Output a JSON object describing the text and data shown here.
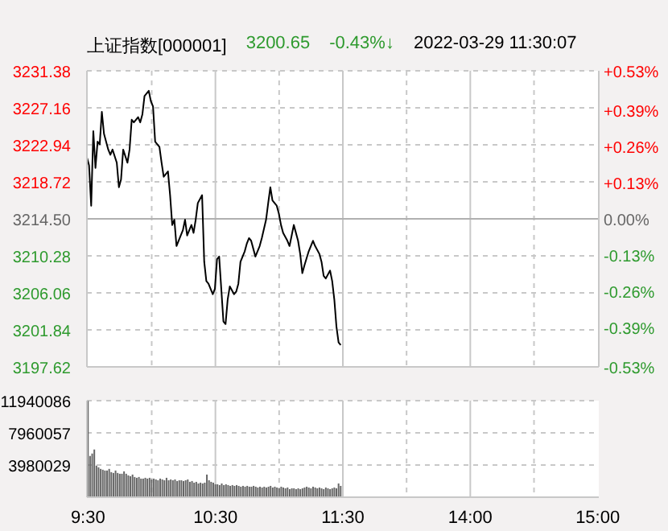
{
  "chart_data": [
    {
      "type": "line",
      "title": "上证指数[000001]",
      "annotations": [
        "3200.65",
        "-0.43%↓",
        "2022-03-29 11:30:07"
      ],
      "categories": [
        null,
        null,
        null,
        null,
        null,
        null,
        null,
        null,
        null,
        null,
        null,
        null,
        null,
        null,
        null,
        null,
        null,
        null,
        null,
        null,
        null,
        null,
        null,
        null,
        null,
        null,
        null,
        null,
        null,
        null,
        null,
        null,
        null,
        null,
        null,
        null,
        null,
        null,
        null,
        null,
        null,
        null,
        null,
        null,
        null,
        null,
        null,
        null,
        null,
        null,
        null,
        null,
        null,
        null,
        null,
        null,
        null,
        null,
        null,
        null,
        null,
        null,
        null,
        null,
        null,
        null,
        null,
        null,
        null,
        null,
        null,
        null,
        null,
        null,
        null,
        null,
        null,
        null,
        null,
        null,
        null,
        null,
        null,
        null,
        null,
        null,
        null,
        null,
        null,
        null,
        null,
        null,
        null,
        null,
        null,
        null,
        null,
        null,
        null,
        null,
        null,
        null,
        null,
        null,
        null,
        null,
        null,
        null,
        null,
        null,
        null,
        null,
        null,
        null,
        null,
        null,
        null,
        null,
        null,
        null,
        null,
        null,
        null,
        null,
        null,
        null,
        null,
        null,
        null,
        null,
        null,
        null,
        null,
        null,
        null,
        null,
        null,
        null,
        null,
        null,
        null,
        null,
        null,
        null,
        null,
        null,
        null,
        null,
        null,
        null,
        null,
        null,
        null,
        null,
        null,
        null,
        null,
        null,
        null,
        null,
        null,
        null,
        null,
        null,
        null,
        null,
        null,
        null,
        null,
        null,
        null,
        null,
        null,
        null,
        null,
        null,
        null,
        null,
        null,
        null,
        null,
        null,
        null,
        null,
        null,
        null,
        null,
        null,
        null,
        null,
        null,
        null,
        null,
        null,
        null,
        null,
        null,
        null,
        null,
        null,
        null,
        null,
        null,
        null,
        null,
        null,
        null,
        null,
        null,
        null,
        null,
        null,
        null,
        null,
        null,
        null,
        null,
        null,
        null,
        null,
        null,
        null,
        null,
        null,
        null,
        null,
        null,
        null,
        null,
        null,
        null,
        null,
        null,
        null,
        null,
        null,
        null,
        null,
        null,
        null,
        null
      ],
      "series": [
        {
          "color": "#000000",
          "values": [
            3221.5,
            3220.6,
            3216.0,
            3224.5,
            3220.3,
            3223.3,
            3223.0,
            3226.7,
            3224.2,
            null,
            3222.4,
            3221.8,
            3222.4,
            null,
            3220.9,
            3218.1,
            3219.0,
            3222.4,
            null,
            3220.9,
            3222.4,
            3225.8,
            3225.5,
            null,
            3226.1,
            3225.5,
            3226.4,
            3228.5,
            null,
            3229.1,
            3227.9,
            3227.3,
            3223.3,
            null,
            3222.7,
            3220.9,
            3219.3,
            3219.6,
            3219.9,
            3217.2,
            3213.8,
            3214.4,
            3211.4,
            null,
            3212.6,
            3213.2,
            3214.4,
            3212.6,
            null,
            3213.8,
            3212.9,
            3214.4,
            3216.3,
            null,
            3217.2,
            3209.6,
            3207.4,
            3207.1,
            null,
            3205.9,
            3206.5,
            3209.9,
            3210.2,
            null,
            3202.8,
            3202.5,
            3205.3,
            3206.8,
            null,
            3205.9,
            3206.2,
            3207.1,
            3209.6,
            null,
            3210.8,
            3211.7,
            3212.3,
            3212.0,
            null,
            3210.2,
            3210.8,
            3211.4,
            3212.3,
            null,
            3214.4,
            3216.3,
            3218.1,
            3216.6,
            null,
            3216.0,
            3215.1,
            3213.8,
            3212.9,
            null,
            3212.0,
            3211.4,
            3212.6,
            3213.8,
            null,
            3212.0,
            3210.5,
            3208.3,
            3209.2,
            null,
            3210.8,
            3211.4,
            3212.0,
            3211.4,
            null,
            3210.5,
            3209.6,
            3208.0,
            3207.7,
            null,
            3208.6,
            3207.4,
            3205.3,
            3202.2,
            3200.4,
            3200.1,
            null,
            null,
            null,
            null,
            null,
            null,
            null,
            null,
            null,
            null,
            null,
            null,
            null,
            null,
            null,
            null,
            null,
            null,
            null,
            null,
            null,
            null,
            null,
            null,
            null,
            null,
            null,
            null,
            null,
            null,
            null,
            null,
            null,
            null,
            null,
            null,
            null,
            null,
            null,
            null,
            null,
            null,
            null,
            null,
            null,
            null,
            null,
            null,
            null,
            null,
            null,
            null,
            null,
            null,
            null,
            null,
            null,
            null,
            null,
            null,
            null,
            null,
            null,
            null,
            null,
            null,
            null,
            null,
            null,
            null,
            null,
            null,
            null,
            null,
            null,
            null,
            null,
            null,
            null,
            null,
            null,
            null,
            null,
            null,
            null,
            null,
            null,
            null,
            null,
            null,
            null,
            null,
            null,
            null,
            null,
            null,
            null,
            null,
            null,
            null,
            null,
            null,
            null,
            null,
            null,
            null,
            null,
            null,
            null,
            null,
            null,
            null,
            null,
            null,
            null,
            null,
            null,
            null,
            null,
            null,
            null
          ]
        }
      ],
      "ylim": [
        3197.62,
        3231.38
      ],
      "yticks": [
        3197.62,
        3201.84,
        3206.06,
        3210.28,
        {
          "value": 3214.5,
          "label": "3214.50"
        },
        3218.72,
        3222.94,
        3227.16,
        3231.38
      ],
      "y2lim": [
        -0.53,
        0.53
      ],
      "y2ticks": [
        {
          "value": -0.53,
          "label": "-0.53%"
        },
        {
          "value": -0.39,
          "label": "-0.39%"
        },
        {
          "value": -0.26,
          "label": "-0.26%"
        },
        {
          "value": -0.13,
          "label": "-0.13%"
        },
        {
          "value": 0,
          "label": "0.00%"
        },
        {
          "value": 0.13,
          "label": "+0.13%"
        },
        {
          "value": 0.26,
          "label": "+0.26%"
        },
        {
          "value": 0.39,
          "label": "+0.39%"
        },
        {
          "value": 0.53,
          "label": "+0.53%"
        }
      ],
      "ref_lines": [
        {
          "axis": "y",
          "value": 3214.5,
          "color": "#b0b0b0"
        }
      ],
      "grid": true,
      "marker": "none",
      "line_style": "solid",
      "tick_labels": "y"
    },
    {
      "type": "bar",
      "color": "#666666",
      "categories": [
        "9:30",
        null,
        null,
        null,
        null,
        null,
        null,
        null,
        null,
        null,
        null,
        null,
        null,
        null,
        null,
        null,
        null,
        null,
        null,
        null,
        null,
        null,
        null,
        null,
        null,
        null,
        null,
        null,
        null,
        null,
        null,
        null,
        null,
        null,
        null,
        null,
        null,
        null,
        null,
        null,
        null,
        null,
        null,
        null,
        null,
        null,
        null,
        null,
        null,
        null,
        null,
        null,
        null,
        null,
        null,
        null,
        null,
        null,
        null,
        null,
        "10:30",
        null,
        null,
        null,
        null,
        null,
        null,
        null,
        null,
        null,
        null,
        null,
        null,
        null,
        null,
        null,
        null,
        null,
        null,
        null,
        null,
        null,
        null,
        null,
        null,
        null,
        null,
        null,
        null,
        null,
        null,
        null,
        null,
        null,
        null,
        null,
        null,
        null,
        null,
        null,
        null,
        null,
        null,
        null,
        null,
        null,
        null,
        null,
        null,
        null,
        null,
        null,
        null,
        null,
        null,
        null,
        null,
        null,
        null,
        null,
        "11:30",
        null,
        null,
        null,
        null,
        null,
        null,
        null,
        null,
        null,
        null,
        null,
        null,
        null,
        null,
        null,
        null,
        null,
        null,
        null,
        null,
        null,
        null,
        null,
        null,
        null,
        null,
        null,
        null,
        null,
        null,
        null,
        null,
        null,
        null,
        null,
        null,
        null,
        null,
        null,
        null,
        null,
        null,
        null,
        null,
        null,
        null,
        null,
        null,
        null,
        null,
        null,
        null,
        null,
        null,
        null,
        null,
        null,
        null,
        null,
        "14:00",
        null,
        null,
        null,
        null,
        null,
        null,
        null,
        null,
        null,
        null,
        null,
        null,
        null,
        null,
        null,
        null,
        null,
        null,
        null,
        null,
        null,
        null,
        null,
        null,
        null,
        null,
        null,
        null,
        null,
        null,
        null,
        null,
        null,
        null,
        null,
        null,
        null,
        null,
        null,
        null,
        null,
        null,
        null,
        null,
        null,
        null,
        null,
        null,
        null,
        null,
        null,
        null,
        null,
        null,
        null,
        null,
        null,
        null,
        null,
        "15:00"
      ],
      "values": [
        11900000,
        5100000,
        5400000,
        5900000,
        3900000,
        3700000,
        3500000,
        3400000,
        3300000,
        3300000,
        3500000,
        3100000,
        3000000,
        3300000,
        3000000,
        2900000,
        2900000,
        3200000,
        2900000,
        2700000,
        2600000,
        2800000,
        2500000,
        2400000,
        2500000,
        2300000,
        2300000,
        2400000,
        2300000,
        2400000,
        2200000,
        2300000,
        2200000,
        2100000,
        2300000,
        2200000,
        2100000,
        2400000,
        2100000,
        2200000,
        2100000,
        2200000,
        2000000,
        2100000,
        2100000,
        2000000,
        2100000,
        2200000,
        1900000,
        2000000,
        1800000,
        1900000,
        1700000,
        1800000,
        1700000,
        1800000,
        2800000,
        2100000,
        1900000,
        1800000,
        1600000,
        1600000,
        1500000,
        1700000,
        1500000,
        1600000,
        1500000,
        1400000,
        1500000,
        1400000,
        1500000,
        1400000,
        1300000,
        1400000,
        1300000,
        1400000,
        1300000,
        1300000,
        1400000,
        1300000,
        1200000,
        1300000,
        1200000,
        1300000,
        1200000,
        1300000,
        1400000,
        1200000,
        1300000,
        1200000,
        1100000,
        1300000,
        1200000,
        1100000,
        1200000,
        1000000,
        1100000,
        1100000,
        1000000,
        1100000,
        1000000,
        1100000,
        1200000,
        1300000,
        1200000,
        1100000,
        1300000,
        1200000,
        1100000,
        1200000,
        1100000,
        1000000,
        1200000,
        1100000,
        1000000,
        1100000,
        1200000,
        1100000,
        1700000,
        1400000,
        null,
        null,
        null,
        null,
        null,
        null,
        null,
        null,
        null,
        null,
        null,
        null,
        null,
        null,
        null,
        null,
        null,
        null,
        null,
        null,
        null,
        null,
        null,
        null,
        null,
        null,
        null,
        null,
        null,
        null,
        null,
        null,
        null,
        null,
        null,
        null,
        null,
        null,
        null,
        null,
        null,
        null,
        null,
        null,
        null,
        null,
        null,
        null,
        null,
        null,
        null,
        null,
        null,
        null,
        null,
        null,
        null,
        null,
        null,
        null,
        null,
        null,
        null,
        null,
        null,
        null,
        null,
        null,
        null,
        null,
        null,
        null,
        null,
        null,
        null,
        null,
        null,
        null,
        null,
        null,
        null,
        null,
        null,
        null,
        null,
        null,
        null,
        null,
        null,
        null,
        null,
        null,
        null,
        null,
        null,
        null,
        null,
        null,
        null,
        null,
        null,
        null,
        null,
        null,
        null,
        null,
        null,
        null,
        null,
        null,
        null,
        null,
        null,
        null,
        null,
        null,
        null,
        null,
        null,
        null,
        null
      ],
      "ylim": [
        0,
        11940086
      ],
      "yticks": [
        3980029,
        7960057,
        11940086
      ],
      "grid": true
    }
  ]
}
